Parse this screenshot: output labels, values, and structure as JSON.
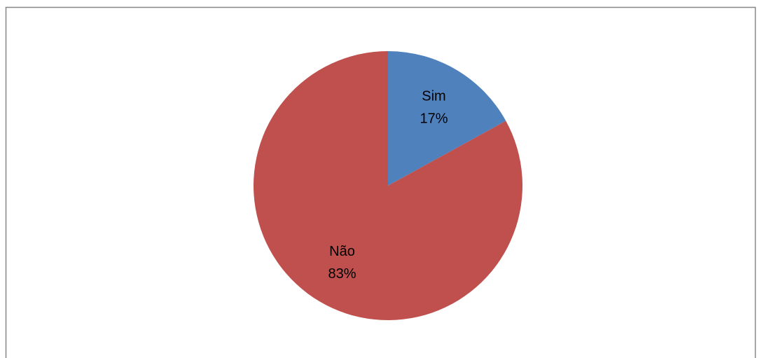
{
  "chart_data": {
    "type": "pie",
    "categories": [
      "Sim",
      "Não"
    ],
    "values": [
      17,
      83
    ],
    "value_labels": [
      "17%",
      "83%"
    ],
    "colors": [
      "#4f81bd",
      "#c0504d"
    ]
  }
}
